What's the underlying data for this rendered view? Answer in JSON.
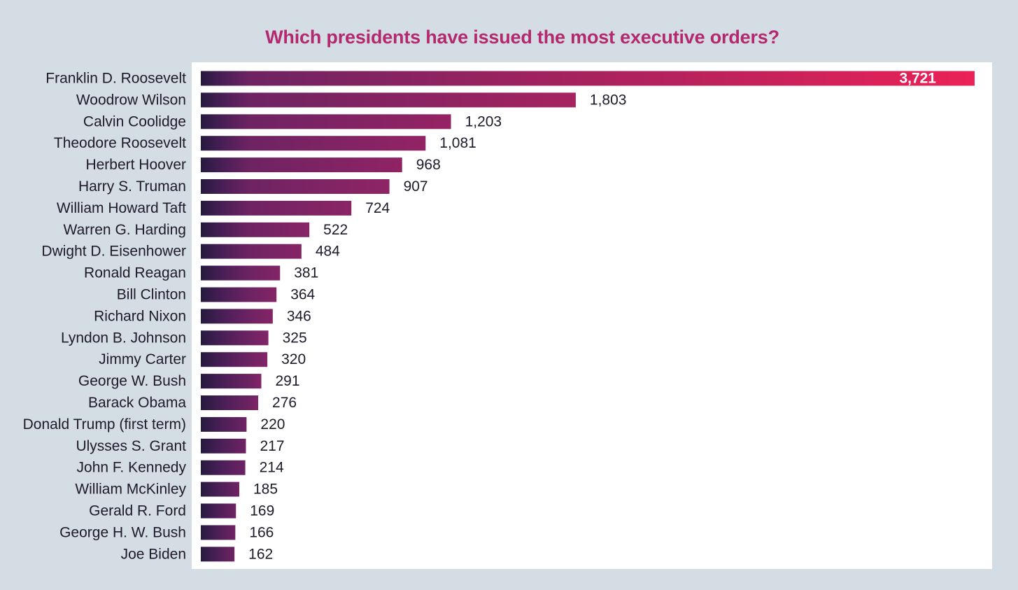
{
  "chart_data": {
    "type": "bar",
    "orientation": "horizontal",
    "title": "Which presidents have issued the most executive orders?",
    "xlabel": "",
    "ylabel": "",
    "grid": false,
    "categories": [
      "Franklin D. Roosevelt",
      "Woodrow Wilson",
      "Calvin Coolidge",
      "Theodore Roosevelt",
      "Herbert Hoover",
      "Harry S. Truman",
      "William Howard Taft",
      "Warren G. Harding",
      "Dwight D. Eisenhower",
      "Ronald Reagan",
      "Bill Clinton",
      "Richard Nixon",
      "Lyndon B. Johnson",
      "Jimmy Carter",
      "George W. Bush",
      "Barack Obama",
      "Donald Trump (first term)",
      "Ulysses S. Grant",
      "John F. Kennedy",
      "William McKinley",
      "Gerald R. Ford",
      "George H. W. Bush",
      "Joe Biden"
    ],
    "values": [
      3721,
      1803,
      1203,
      1081,
      968,
      907,
      724,
      522,
      484,
      381,
      364,
      346,
      325,
      320,
      291,
      276,
      220,
      217,
      214,
      185,
      169,
      166,
      162
    ],
    "value_labels": [
      "3,721",
      "1,803",
      "1,203",
      "1,081",
      "968",
      "907",
      "724",
      "522",
      "484",
      "381",
      "364",
      "346",
      "325",
      "320",
      "291",
      "276",
      "220",
      "217",
      "214",
      "185",
      "169",
      "166",
      "162"
    ],
    "xlim": [
      0,
      3721
    ]
  },
  "colors": {
    "background": "#d5dde4",
    "panel": "#ffffff",
    "title": "#b3296f",
    "bar_start": "#261a3f",
    "bar_mid": "#7d2465",
    "bar_end": "#ea2257",
    "text": "#1e1a2c"
  }
}
